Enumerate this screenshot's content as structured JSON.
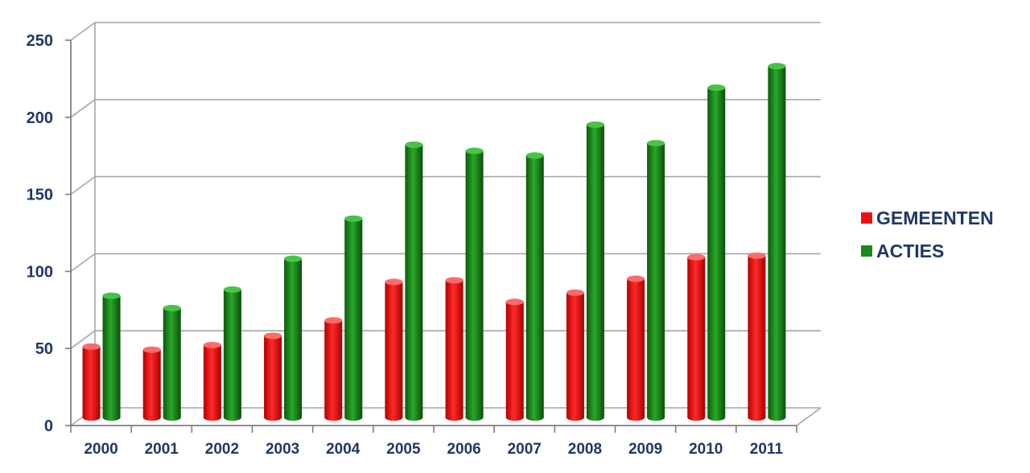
{
  "chart_data": {
    "type": "bar",
    "categories": [
      "2000",
      "2001",
      "2002",
      "2003",
      "2004",
      "2005",
      "2006",
      "2007",
      "2008",
      "2009",
      "2010",
      "2011"
    ],
    "series": [
      {
        "name": "GEMEENTEN",
        "color": "#ee1111",
        "values": [
          46,
          44,
          47,
          53,
          63,
          88,
          89,
          75,
          81,
          90,
          104,
          105
        ]
      },
      {
        "name": "ACTIES",
        "color": "#1a8a1a",
        "values": [
          79,
          71,
          83,
          103,
          129,
          177,
          173,
          170,
          190,
          178,
          214,
          228
        ]
      }
    ],
    "y_ticks": [
      "0",
      "50",
      "100",
      "150",
      "200",
      "250"
    ],
    "ylim": [
      0,
      250
    ],
    "grid": true,
    "legend_position": "right"
  }
}
